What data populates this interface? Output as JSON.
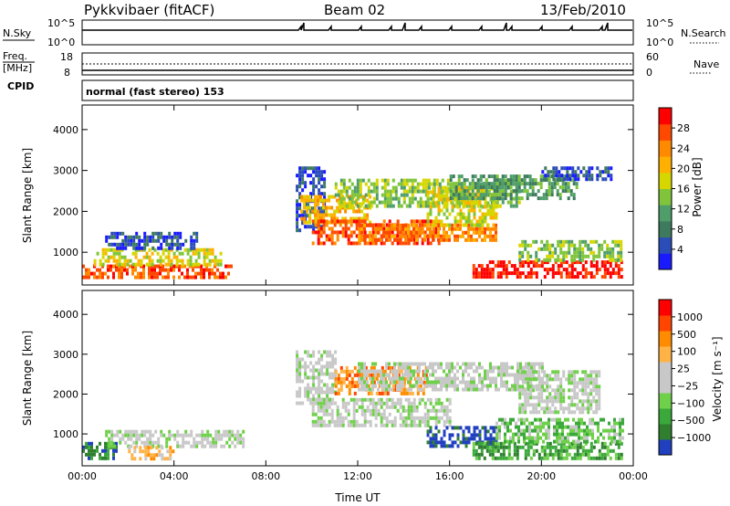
{
  "header": {
    "radar": "Pykkvibaer (fitACF)",
    "beam": "Beam 02",
    "date": "13/Feb/2010"
  },
  "panels": {
    "nsky": {
      "label": "N.Sky",
      "tick_top": "10^5",
      "tick_bottom": "10^0",
      "right_label": "N.Search",
      "right_tick_top": "10^5",
      "right_tick_bottom": "10^0"
    },
    "freq": {
      "label_top": "Freq.",
      "label_unit": "[MHz]",
      "tick_top": "18",
      "tick_bottom": "8",
      "right_label": "Nave",
      "right_tick_top": "60",
      "right_tick_bottom": "0"
    },
    "cpid": {
      "label": "CPID",
      "text": "normal (fast stereo) 153"
    }
  },
  "chart_data": [
    {
      "type": "heatmap",
      "quantity": "power",
      "ylabel": "Slant Range [km]",
      "ylim": [
        200,
        4600
      ],
      "yticks": [
        "1000",
        "2000",
        "3000",
        "4000"
      ],
      "yticks_values": [
        1000,
        2000,
        3000,
        4000
      ],
      "xticks": [
        "00:00",
        "04:00",
        "08:00",
        "12:00",
        "16:00",
        "20:00",
        "00:00"
      ],
      "xlim_hours": [
        0,
        24
      ],
      "colorbar": {
        "label": "Power [dB]",
        "ticks": [
          "4",
          "8",
          "12",
          "16",
          "20",
          "24",
          "28"
        ],
        "colors": [
          "#1a1aff",
          "#2b4db8",
          "#3d7a5e",
          "#4f9e6a",
          "#7fc43a",
          "#d6d600",
          "#ffb000",
          "#ff8a00",
          "#ff4800",
          "#ff0000"
        ]
      },
      "regions": [
        {
          "t0": 0.0,
          "t1": 6.5,
          "r0": 350,
          "r1": 700,
          "level": 8
        },
        {
          "t0": 0.5,
          "t1": 6.0,
          "r0": 700,
          "r1": 1100,
          "level": 5
        },
        {
          "t0": 1.0,
          "t1": 5.0,
          "r0": 1100,
          "r1": 1500,
          "level": 1
        },
        {
          "t0": 9.3,
          "t1": 10.5,
          "r0": 1500,
          "r1": 3100,
          "level": 1
        },
        {
          "t0": 9.5,
          "t1": 12.5,
          "r0": 1700,
          "r1": 2400,
          "level": 6
        },
        {
          "t0": 10.0,
          "t1": 15.5,
          "r0": 1200,
          "r1": 1800,
          "level": 8
        },
        {
          "t0": 11.0,
          "t1": 19.0,
          "r0": 2100,
          "r1": 2800,
          "level": 4
        },
        {
          "t0": 12.0,
          "t1": 18.0,
          "r0": 1300,
          "r1": 1700,
          "level": 7
        },
        {
          "t0": 15.0,
          "t1": 18.0,
          "r0": 1700,
          "r1": 2600,
          "level": 5
        },
        {
          "t0": 16.0,
          "t1": 21.5,
          "r0": 2300,
          "r1": 2900,
          "level": 3
        },
        {
          "t0": 17.0,
          "t1": 23.5,
          "r0": 400,
          "r1": 800,
          "level": 9
        },
        {
          "t0": 19.0,
          "t1": 23.5,
          "r0": 800,
          "r1": 1300,
          "level": 4
        },
        {
          "t0": 20.0,
          "t1": 23.0,
          "r0": 2800,
          "r1": 3100,
          "level": 1
        }
      ]
    },
    {
      "type": "heatmap",
      "quantity": "velocity",
      "ylabel": "Slant Range [km]",
      "ylim": [
        200,
        4600
      ],
      "yticks": [
        "1000",
        "2000",
        "3000",
        "4000"
      ],
      "yticks_values": [
        1000,
        2000,
        3000,
        4000
      ],
      "xticks": [
        "00:00",
        "04:00",
        "08:00",
        "12:00",
        "16:00",
        "20:00",
        "00:00"
      ],
      "xlim_hours": [
        0,
        24
      ],
      "xlabel": "Time UT",
      "colorbar": {
        "label": "Velocity [m s⁻¹]",
        "ticks": [
          "1000",
          "500",
          "100",
          "25",
          "−25",
          "−100",
          "−500",
          "−1000"
        ],
        "colors": [
          "#2040c0",
          "#2f7f2f",
          "#3aa83a",
          "#6fd04a",
          "#c8c8c8",
          "#c8c8c8",
          "#ffb347",
          "#ff8c00",
          "#ff4500",
          "#ff0000"
        ]
      },
      "regions": [
        {
          "t0": 0.0,
          "t1": 1.5,
          "r0": 400,
          "r1": 800,
          "level": 1
        },
        {
          "t0": 1.0,
          "t1": 7.0,
          "r0": 700,
          "r1": 1100,
          "level": 4
        },
        {
          "t0": 2.0,
          "t1": 4.0,
          "r0": 400,
          "r1": 700,
          "level": 6
        },
        {
          "t0": 9.3,
          "t1": 11.0,
          "r0": 1800,
          "r1": 3100,
          "level": 4
        },
        {
          "t0": 10.0,
          "t1": 16.0,
          "r0": 1200,
          "r1": 1900,
          "level": 4
        },
        {
          "t0": 11.0,
          "t1": 15.0,
          "r0": 2000,
          "r1": 2700,
          "level": 7
        },
        {
          "t0": 12.0,
          "t1": 20.0,
          "r0": 2100,
          "r1": 2800,
          "level": 4
        },
        {
          "t0": 15.0,
          "t1": 18.0,
          "r0": 700,
          "r1": 1200,
          "level": 0
        },
        {
          "t0": 17.0,
          "t1": 23.5,
          "r0": 400,
          "r1": 800,
          "level": 2
        },
        {
          "t0": 18.0,
          "t1": 23.5,
          "r0": 800,
          "r1": 1400,
          "level": 3
        },
        {
          "t0": 19.0,
          "t1": 22.5,
          "r0": 1500,
          "r1": 2600,
          "level": 4
        }
      ]
    }
  ]
}
